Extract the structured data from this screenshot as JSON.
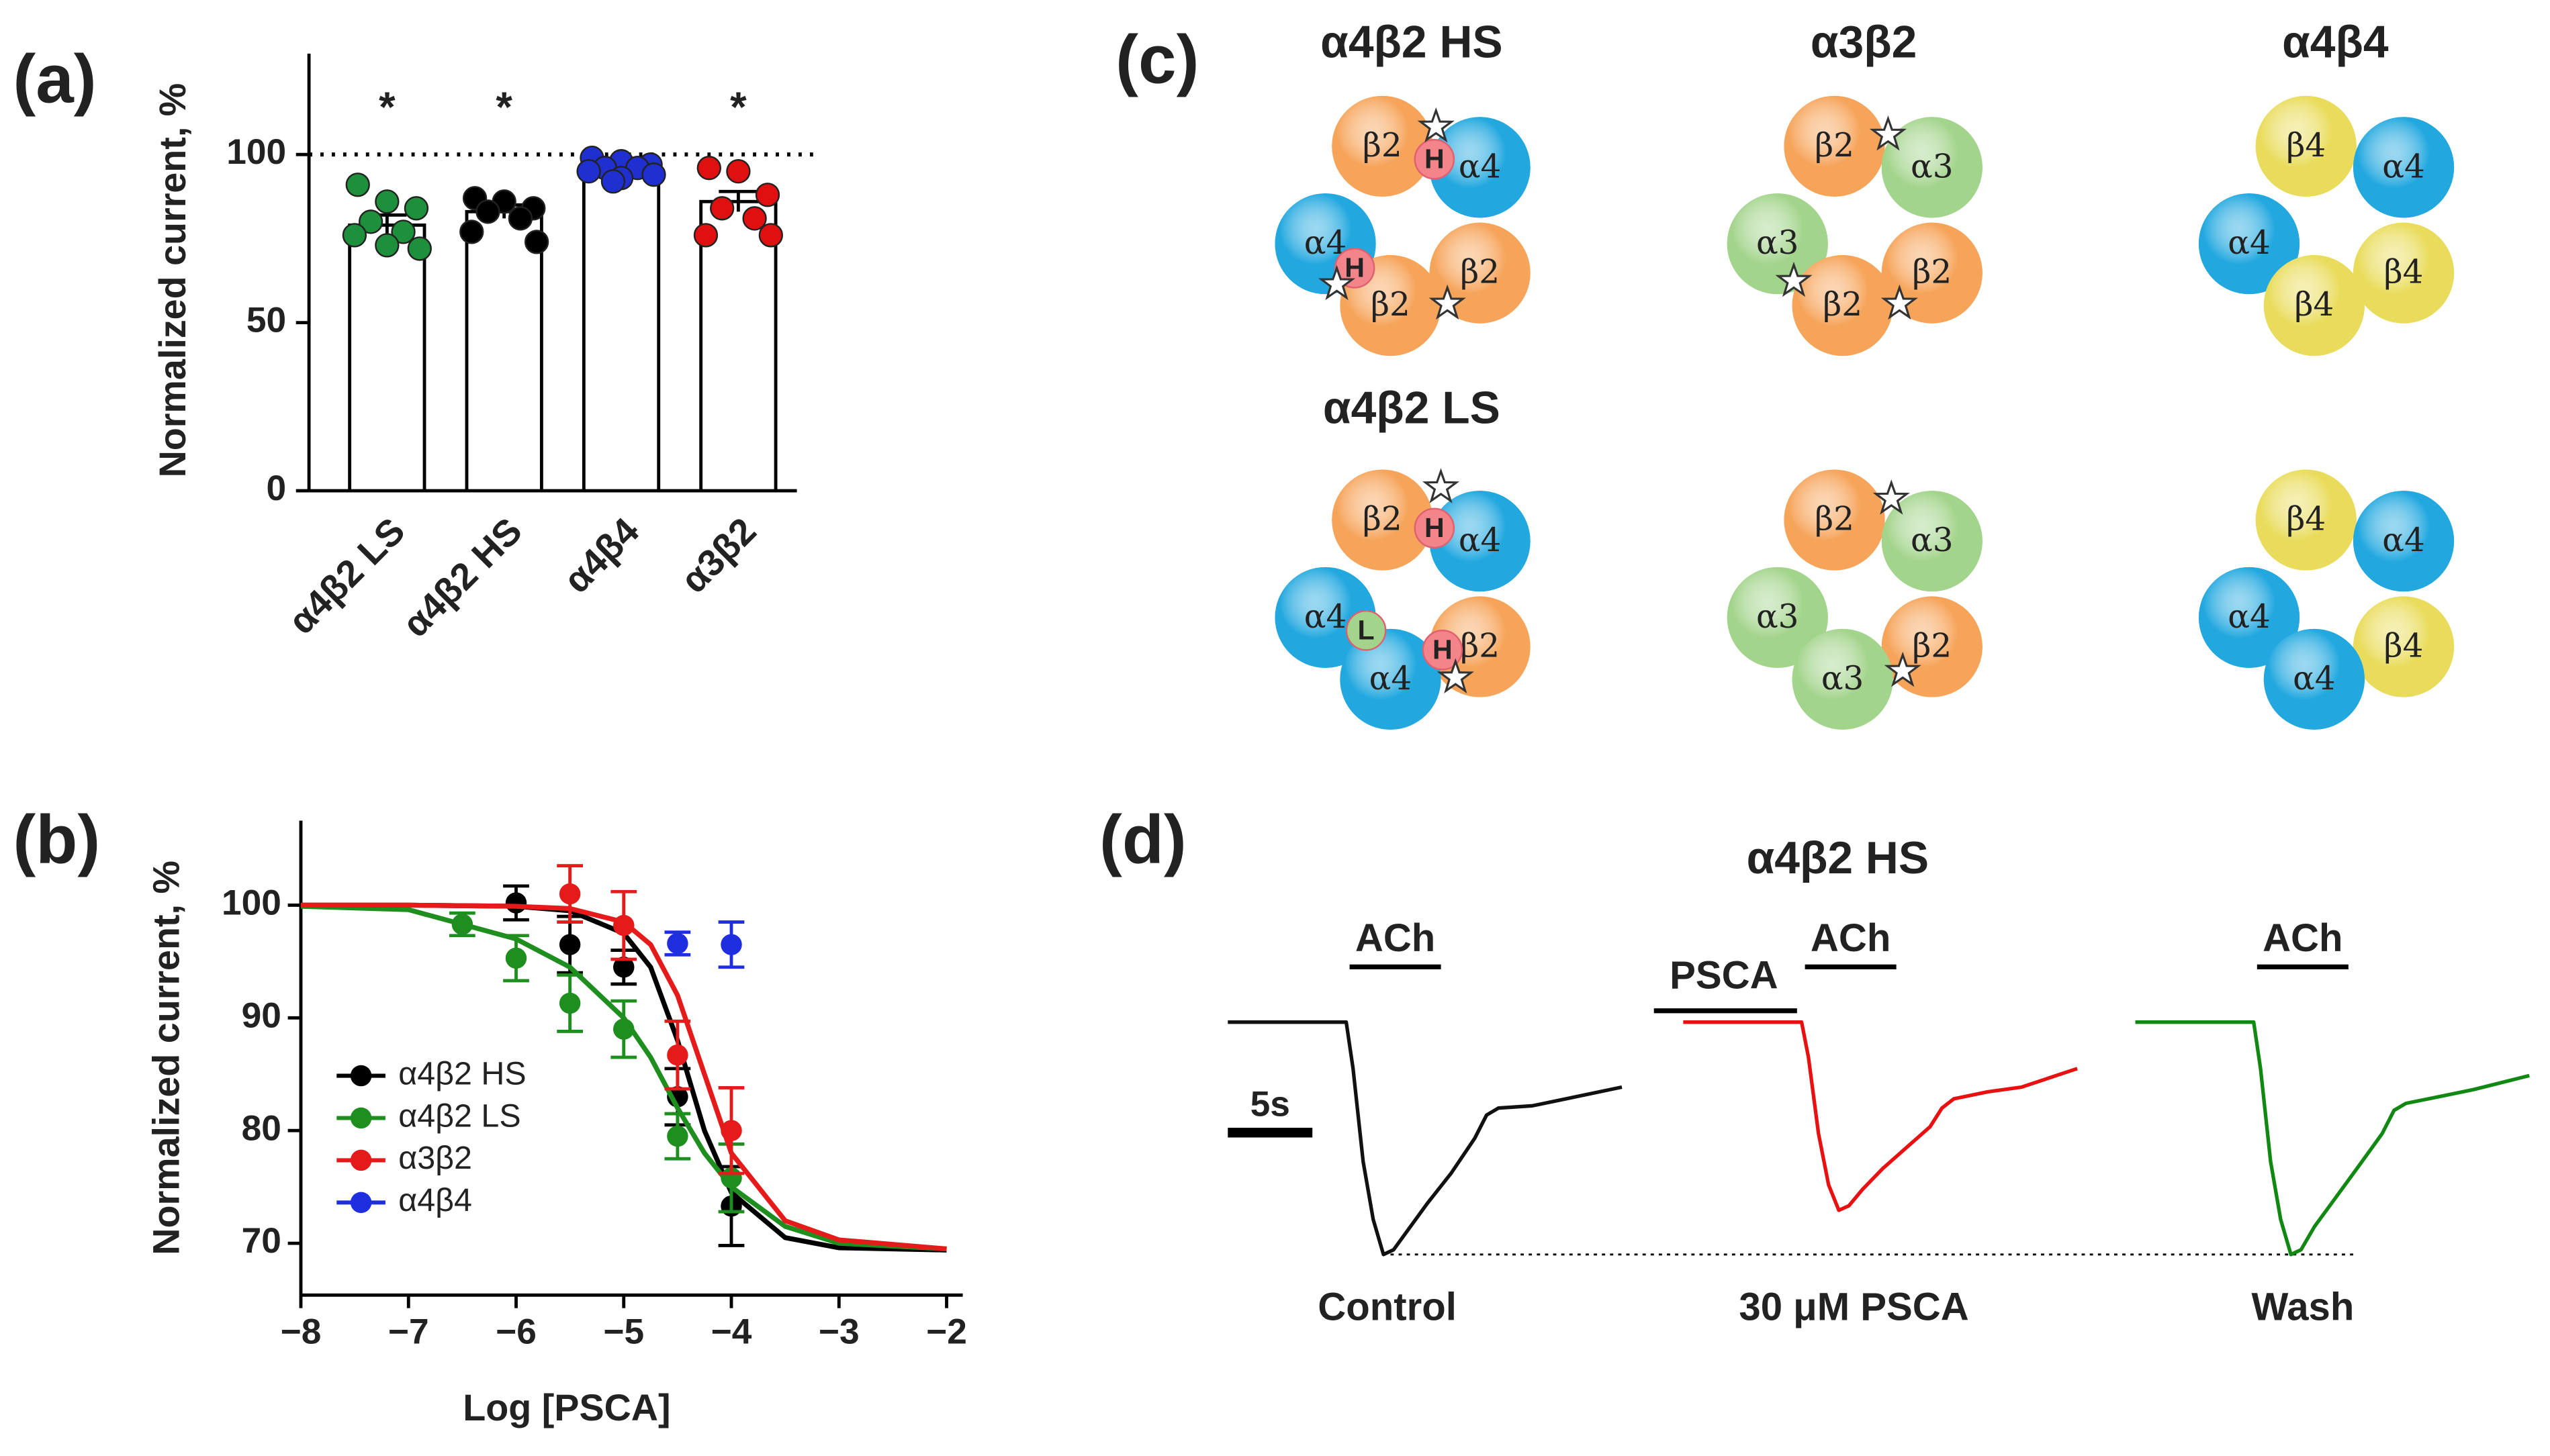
{
  "panels": [
    "(a)",
    "(b)",
    "(c)",
    "(d)"
  ],
  "chart_data": [
    {
      "type": "bar",
      "ylabel": "Normalized current, %",
      "categories": [
        "α4β2 LS",
        "α4β2 HS",
        "α4β4",
        "α3β2"
      ],
      "values": [
        79,
        83,
        96,
        86
      ],
      "errors": [
        3,
        2,
        1,
        3
      ],
      "points": [
        [
          91,
          86,
          84,
          80,
          77,
          76,
          72,
          73
        ],
        [
          87,
          86,
          84,
          83,
          81,
          77,
          74
        ],
        [
          99,
          98,
          97,
          96,
          96,
          95,
          94,
          93,
          92
        ],
        [
          96,
          95,
          88,
          84,
          81,
          76,
          76
        ]
      ],
      "point_colors": [
        "#1e8f3a",
        "#000000",
        "#1f2fd0",
        "#e01010"
      ],
      "color": "#ffffff",
      "ylim": [
        0,
        130
      ],
      "yticks": [
        0,
        50,
        100
      ],
      "reference_line": 100,
      "annotations": [
        "*",
        "*",
        null,
        "*"
      ]
    },
    {
      "type": "scatter",
      "xlabel": "Log [PSCA]",
      "ylabel": "Normalized current, %",
      "xlim": [
        -8,
        -1.85
      ],
      "xticks": [
        {
          "value": -8,
          "label": "−8"
        },
        {
          "value": -7,
          "label": "−7"
        },
        {
          "value": -6,
          "label": "−6"
        },
        {
          "value": -5,
          "label": "−5"
        },
        {
          "value": -4,
          "label": "−4"
        },
        {
          "value": -3,
          "label": "−3"
        },
        {
          "value": -2,
          "label": "−2"
        }
      ],
      "ylim": [
        65.4,
        107.5
      ],
      "yticks": [
        70,
        80,
        90,
        100
      ],
      "legend": "lower left",
      "series": [
        {
          "name": "α4β2 HS",
          "color": "#000000",
          "x": [
            -6,
            -5.5,
            -5,
            -4.5,
            -4
          ],
          "values": [
            100.2,
            96.5,
            94.5,
            83,
            73.3
          ],
          "errors": [
            1.5,
            2.5,
            1.5,
            2.5,
            3.5
          ],
          "fit": {
            "x": [
              -8,
              -7,
              -6,
              -5.5,
              -5,
              -4.75,
              -4.5,
              -4.25,
              -4,
              -3.5,
              -3,
              -2
            ],
            "values": [
              100,
              100,
              99.9,
              99.5,
              97.5,
              94.5,
              88,
              80,
              74.5,
              70.5,
              69.6,
              69.4
            ]
          }
        },
        {
          "name": "α4β2 LS",
          "color": "#1e8f1e",
          "x": [
            -6.5,
            -6,
            -5.5,
            -5,
            -4.5,
            -4
          ],
          "values": [
            98.3,
            95.3,
            91.3,
            89,
            79.5,
            75.8
          ],
          "errors": [
            1,
            2,
            2.5,
            2.5,
            2,
            3
          ],
          "fit": {
            "x": [
              -8,
              -7,
              -6,
              -5.5,
              -5,
              -4.75,
              -4.5,
              -4.25,
              -4,
              -3.5,
              -3,
              -2
            ],
            "values": [
              99.9,
              99.6,
              97,
              94.5,
              90,
              86.5,
              82,
              78,
              75,
              71.5,
              70,
              69.5
            ]
          }
        },
        {
          "name": "α3β2",
          "color": "#e51a1a",
          "x": [
            -5.5,
            -5,
            -4.5,
            -4
          ],
          "values": [
            101,
            98.2,
            86.7,
            80
          ],
          "errors": [
            2.5,
            3,
            3,
            3.8
          ],
          "fit": {
            "x": [
              -8,
              -7,
              -6,
              -5.5,
              -5,
              -4.75,
              -4.5,
              -4.25,
              -4,
              -3.5,
              -3,
              -2
            ],
            "values": [
              100,
              100,
              99.9,
              99.7,
              98.5,
              96.5,
              92,
              85,
              78,
              72,
              70.3,
              69.5
            ]
          }
        },
        {
          "name": "α4β4",
          "color": "#1f2fe0",
          "x": [
            -4.5,
            -4
          ],
          "values": [
            96.6,
            96.5
          ],
          "errors": [
            1,
            2
          ]
        }
      ]
    },
    {
      "type": "trace",
      "title": "α4β2 HS",
      "scale_bar": {
        "value": 5,
        "label": "5s"
      },
      "pre_stimulus": "PSCA",
      "x": [
        0,
        7.0,
        7.4,
        8.0,
        8.6,
        9.2,
        9.8,
        10.6,
        11.8,
        13.2,
        14.6,
        15.3,
        16,
        18,
        20,
        23.3
      ],
      "series": [
        {
          "name": "Control",
          "stimulus": "ACh",
          "color": "#111111",
          "values": [
            0,
            0,
            -20,
            -60,
            -85,
            -100,
            -98,
            -90,
            -78,
            -65,
            -50,
            -40,
            -37,
            -36,
            -33,
            -28
          ]
        },
        {
          "name": "30 μM PSCA",
          "stimulus": "ACh",
          "color": "#e81010",
          "values": [
            0,
            0,
            -15,
            -48,
            -70,
            -81,
            -79,
            -72,
            -63,
            -54,
            -45,
            -37,
            -33,
            -30,
            -28,
            -20
          ]
        },
        {
          "name": "Wash",
          "stimulus": "ACh",
          "color": "#118811",
          "values": [
            0,
            0,
            -20,
            -60,
            -85,
            -100,
            -98,
            -88,
            -76,
            -62,
            -48,
            -38,
            -35,
            -32,
            -29,
            -23
          ]
        }
      ]
    }
  ],
  "diagram": {
    "assemblies": [
      {
        "title": "α4β2 HS",
        "subunits": [
          {
            "name": "β2",
            "color": "#f6a45a"
          },
          {
            "name": "α4",
            "color": "#22a8df"
          },
          {
            "name": "α4",
            "color": "#22a8df"
          },
          {
            "name": "β2",
            "color": "#f6a45a"
          },
          {
            "name": "β2",
            "color": "#f6a45a"
          }
        ],
        "badges": [
          {
            "text": "H",
            "color": "#f2848a"
          },
          {
            "text": "H",
            "color": "#f2848a"
          }
        ]
      },
      {
        "title": "α3β2",
        "subunits": [
          {
            "name": "β2",
            "color": "#f6a45a"
          },
          {
            "name": "α3",
            "color": "#a3d48c"
          },
          {
            "name": "α3",
            "color": "#a3d48c"
          },
          {
            "name": "β2",
            "color": "#f6a45a"
          },
          {
            "name": "β2",
            "color": "#f6a45a"
          }
        ],
        "badges": []
      },
      {
        "title": "α4β4",
        "subunits": [
          {
            "name": "β4",
            "color": "#e9dc5c"
          },
          {
            "name": "α4",
            "color": "#22a8df"
          },
          {
            "name": "α4",
            "color": "#22a8df"
          },
          {
            "name": "β4",
            "color": "#e9dc5c"
          },
          {
            "name": "β4",
            "color": "#e9dc5c"
          }
        ],
        "badges": []
      },
      {
        "title": "α4β2 LS",
        "subunits": [
          {
            "name": "β2",
            "color": "#f6a45a"
          },
          {
            "name": "α4",
            "color": "#22a8df"
          },
          {
            "name": "α4",
            "color": "#22a8df"
          },
          {
            "name": "β2",
            "color": "#f6a45a"
          },
          {
            "name": "α4",
            "color": "#22a8df"
          }
        ],
        "badges": [
          {
            "text": "H",
            "color": "#f2848a"
          },
          {
            "text": "L",
            "color": "#a3d48c"
          },
          {
            "text": "H",
            "color": "#f2848a"
          }
        ]
      },
      {
        "subunits": [
          {
            "name": "β2",
            "color": "#f6a45a"
          },
          {
            "name": "α3",
            "color": "#a3d48c"
          },
          {
            "name": "α3",
            "color": "#a3d48c"
          },
          {
            "name": "β2",
            "color": "#f6a45a"
          },
          {
            "name": "α3",
            "color": "#a3d48c"
          }
        ],
        "badges": []
      },
      {
        "subunits": [
          {
            "name": "β4",
            "color": "#e9dc5c"
          },
          {
            "name": "α4",
            "color": "#22a8df"
          },
          {
            "name": "α4",
            "color": "#22a8df"
          },
          {
            "name": "β4",
            "color": "#e9dc5c"
          },
          {
            "name": "α4",
            "color": "#22a8df"
          }
        ],
        "badges": []
      }
    ]
  }
}
